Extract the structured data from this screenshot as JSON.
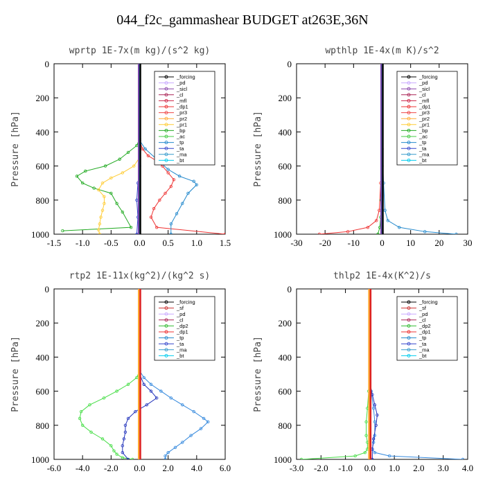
{
  "title": "044_f2c_gammashear  BUDGET at263E,36N",
  "chart_data": [
    {
      "type": "line",
      "title": "wprtp  1E-7x(m kg)/(s^2 kg)",
      "ylabel": "Pressure [hPa]",
      "xlim": [
        -1.5,
        1.5
      ],
      "ylim": [
        1000,
        0
      ],
      "xticks": [
        "-1.5",
        "-1.0",
        "-0.5",
        "0.0",
        "0.5",
        "1.0",
        "1.5"
      ],
      "xtick_values": [
        -1.5,
        -1.0,
        -0.5,
        0.0,
        0.5,
        1.0,
        1.5
      ],
      "yticks": [
        "0",
        "200",
        "400",
        "600",
        "800",
        "1000"
      ],
      "ytick_values": [
        0,
        200,
        400,
        600,
        800,
        1000
      ],
      "legend": [
        "_forcing",
        "_pd",
        "_sicl",
        "_cl",
        "_mfl",
        "_dp1",
        "_pr3",
        "_pr2",
        "_pr1",
        "_bp",
        "_ac",
        "_tp",
        "_ta",
        "_ma",
        "_bt"
      ],
      "series": [
        {
          "name": "_forcing",
          "color": "#000000",
          "x": [
            0,
            0
          ],
          "y": [
            0,
            1000
          ]
        },
        {
          "name": "_pd",
          "color": "#b0b0ff",
          "x": [
            0,
            0
          ],
          "y": [
            0,
            1000
          ]
        },
        {
          "name": "_bp",
          "color": "#22aa22",
          "x": [
            0,
            0,
            -0.05,
            -0.2,
            -0.35,
            -0.6,
            -0.95,
            -1.1,
            -1.0,
            -0.8,
            -0.5,
            -0.4,
            -0.3,
            -0.15,
            -1.35
          ],
          "y": [
            0,
            440,
            480,
            520,
            560,
            600,
            630,
            660,
            700,
            730,
            760,
            820,
            870,
            960,
            980
          ]
        },
        {
          "name": "_pr1",
          "color": "#ffcc33",
          "x": [
            0,
            0,
            -0.1,
            -0.3,
            -0.5,
            -0.65,
            -0.72,
            -0.62,
            -0.62,
            -0.65,
            -0.68,
            -0.7,
            -0.72,
            -0.7
          ],
          "y": [
            0,
            550,
            600,
            640,
            670,
            700,
            740,
            780,
            820,
            860,
            900,
            940,
            975,
            1000
          ]
        },
        {
          "name": "_dp1",
          "color": "#ee3333",
          "x": [
            0,
            0,
            0.05,
            0.15,
            0.3,
            0.4,
            0.5,
            0.6,
            0.55,
            0.45,
            0.35,
            0.25,
            0.2,
            0.3,
            1.5
          ],
          "y": [
            0,
            450,
            500,
            540,
            570,
            600,
            640,
            680,
            720,
            760,
            800,
            850,
            900,
            960,
            1000
          ]
        },
        {
          "name": "_tp",
          "color": "#2288cc",
          "x": [
            0,
            0,
            0.1,
            0.3,
            0.5,
            0.7,
            0.95,
            1.0,
            0.85,
            0.75,
            0.65,
            0.55,
            0.55
          ],
          "y": [
            0,
            450,
            500,
            560,
            620,
            660,
            690,
            710,
            760,
            820,
            880,
            940,
            1000
          ]
        },
        {
          "name": "_ta",
          "color": "#3344cc",
          "x": [
            0,
            0,
            -0.03,
            -0.05,
            -0.03,
            -0.05
          ],
          "y": [
            0,
            600,
            700,
            800,
            900,
            1000
          ]
        },
        {
          "name": "_bt",
          "color": "#00ccee",
          "x": [
            0,
            0
          ],
          "y": [
            0,
            1000
          ]
        }
      ]
    },
    {
      "type": "line",
      "title": "wpthlp  1E-4x(m K)/s^2",
      "ylabel": "Pressure [hPa]",
      "xlim": [
        -30,
        30
      ],
      "ylim": [
        1000,
        0
      ],
      "xticks": [
        "-30",
        "-20",
        "-10",
        "0",
        "10",
        "20",
        "30"
      ],
      "xtick_values": [
        -30,
        -20,
        -10,
        0,
        10,
        20,
        30
      ],
      "yticks": [
        "0",
        "200",
        "400",
        "600",
        "800",
        "1000"
      ],
      "ytick_values": [
        0,
        200,
        400,
        600,
        800,
        1000
      ],
      "legend": [
        "_forcing",
        "_pd",
        "_sicl",
        "_cl",
        "_mfl",
        "_dp1",
        "_pr3",
        "_pr2",
        "_pr1",
        "_bp",
        "_ac",
        "_tp",
        "_ta",
        "_ma",
        "_bt"
      ],
      "series": [
        {
          "name": "_pd",
          "color": "#cc99ee",
          "x": [
            0,
            0
          ],
          "y": [
            0,
            1000
          ]
        },
        {
          "name": "_dp1",
          "color": "#ee3333",
          "x": [
            0,
            0,
            -0.5,
            -1,
            -2,
            -5,
            -12,
            -22
          ],
          "y": [
            0,
            500,
            700,
            860,
            920,
            960,
            985,
            1000
          ]
        },
        {
          "name": "_tp",
          "color": "#2288cc",
          "x": [
            0,
            0,
            0.5,
            1,
            2,
            6,
            15,
            26
          ],
          "y": [
            0,
            500,
            700,
            860,
            920,
            960,
            985,
            1000
          ]
        },
        {
          "name": "_bp",
          "color": "#22aa22",
          "x": [
            0,
            0,
            -0.3,
            -0.5,
            -0.8,
            -1.5
          ],
          "y": [
            0,
            600,
            800,
            900,
            960,
            1000
          ]
        },
        {
          "name": "_bt",
          "color": "#00ccee",
          "x": [
            0,
            0
          ],
          "y": [
            0,
            1000
          ]
        }
      ]
    },
    {
      "type": "line",
      "title": "rtp2  1E-11x(kg^2)/(kg^2 s)",
      "ylabel": "Pressure [hPa]",
      "xlim": [
        -6,
        6
      ],
      "ylim": [
        1000,
        0
      ],
      "xticks": [
        "-6.0",
        "-4.0",
        "-2.0",
        "0.0",
        "2.0",
        "4.0",
        "6.0"
      ],
      "xtick_values": [
        -6,
        -4,
        -2,
        0,
        2,
        4,
        6
      ],
      "yticks": [
        "0",
        "200",
        "400",
        "600",
        "800",
        "1000"
      ],
      "ytick_values": [
        0,
        200,
        400,
        600,
        800,
        1000
      ],
      "legend": [
        "_forcing",
        "_sf",
        "_pd",
        "_cl",
        "_dp2",
        "_dp1",
        "_tp",
        "_ta",
        "_ma",
        "_bt"
      ],
      "series": [
        {
          "name": "_dp1",
          "color": "#44dd44",
          "x": [
            0,
            0,
            -0.2,
            -0.8,
            -1.6,
            -2.5,
            -3.5,
            -4.1,
            -4.2,
            -4.0,
            -3.4,
            -2.6,
            -2.0,
            -1.8,
            -1.6,
            -1.2,
            -0.5
          ],
          "y": [
            0,
            480,
            520,
            560,
            600,
            640,
            680,
            720,
            760,
            800,
            840,
            880,
            920,
            950,
            970,
            990,
            1000
          ]
        },
        {
          "name": "_tp",
          "color": "#3388dd",
          "x": [
            0,
            0,
            0.3,
            0.8,
            1.5,
            2.2,
            3.0,
            3.8,
            4.5,
            4.8,
            4.3,
            3.6,
            3.0,
            2.5,
            2.0,
            1.8,
            1.8
          ],
          "y": [
            0,
            480,
            520,
            560,
            600,
            640,
            680,
            720,
            760,
            780,
            820,
            860,
            900,
            930,
            960,
            980,
            1000
          ]
        },
        {
          "name": "_ta",
          "color": "#2233bb",
          "x": [
            0,
            0,
            0.3,
            0.8,
            1.2,
            0.5,
            -0.3,
            -0.8,
            -1.0,
            -1.0,
            -1.1,
            -1.2,
            -1.2,
            -0.8
          ],
          "y": [
            0,
            500,
            560,
            600,
            640,
            680,
            720,
            760,
            800,
            840,
            880,
            920,
            960,
            1000
          ]
        },
        {
          "name": "_forcing",
          "color": "#ee3333",
          "x": [
            0,
            0
          ],
          "y": [
            0,
            1000
          ]
        },
        {
          "name": "_pd",
          "color": "#ffaa33",
          "x": [
            0,
            0
          ],
          "y": [
            0,
            1000
          ]
        }
      ]
    },
    {
      "type": "line",
      "title": "thlp2  1E-4x(K^2)/s",
      "ylabel": "Pressure [hPa]",
      "xlim": [
        -3,
        4
      ],
      "ylim": [
        1000,
        0
      ],
      "xticks": [
        "-3.0",
        "-2.0",
        "-1.0",
        "0.0",
        "1.0",
        "2.0",
        "3.0",
        "4.0"
      ],
      "xtick_values": [
        -3,
        -2,
        -1,
        0,
        1,
        2,
        3,
        4
      ],
      "yticks": [
        "0",
        "200",
        "400",
        "600",
        "800",
        "1000"
      ],
      "ytick_values": [
        0,
        200,
        400,
        600,
        800,
        1000
      ],
      "legend": [
        "_forcing",
        "_sf",
        "_pd",
        "_cl",
        "_dp2",
        "_dp1",
        "_tp",
        "_ta",
        "_ma",
        "_bt"
      ],
      "series": [
        {
          "name": "_dp1",
          "color": "#44dd44",
          "x": [
            0,
            0,
            -0.05,
            -0.1,
            -0.15,
            -0.15,
            -0.1,
            -0.1,
            -0.2,
            -0.6,
            -2.8
          ],
          "y": [
            0,
            500,
            600,
            700,
            780,
            860,
            900,
            940,
            960,
            980,
            1000
          ]
        },
        {
          "name": "_tp",
          "color": "#3388dd",
          "x": [
            0,
            0,
            0.05,
            0.15,
            0.2,
            0.2,
            0.15,
            0.1,
            0.2,
            0.8,
            3.8
          ],
          "y": [
            0,
            500,
            600,
            700,
            780,
            860,
            900,
            940,
            960,
            980,
            1000
          ]
        },
        {
          "name": "_ta",
          "color": "#2233bb",
          "x": [
            0,
            0,
            0.1,
            0.2,
            0.3,
            0.25,
            0.15,
            0.1,
            0.1
          ],
          "y": [
            0,
            550,
            620,
            680,
            740,
            800,
            880,
            940,
            1000
          ]
        },
        {
          "name": "_forcing",
          "color": "#ee3333",
          "x": [
            0,
            0
          ],
          "y": [
            0,
            1000
          ]
        },
        {
          "name": "_pd",
          "color": "#ffaa33",
          "x": [
            0,
            0
          ],
          "y": [
            0,
            1000
          ]
        }
      ]
    }
  ]
}
